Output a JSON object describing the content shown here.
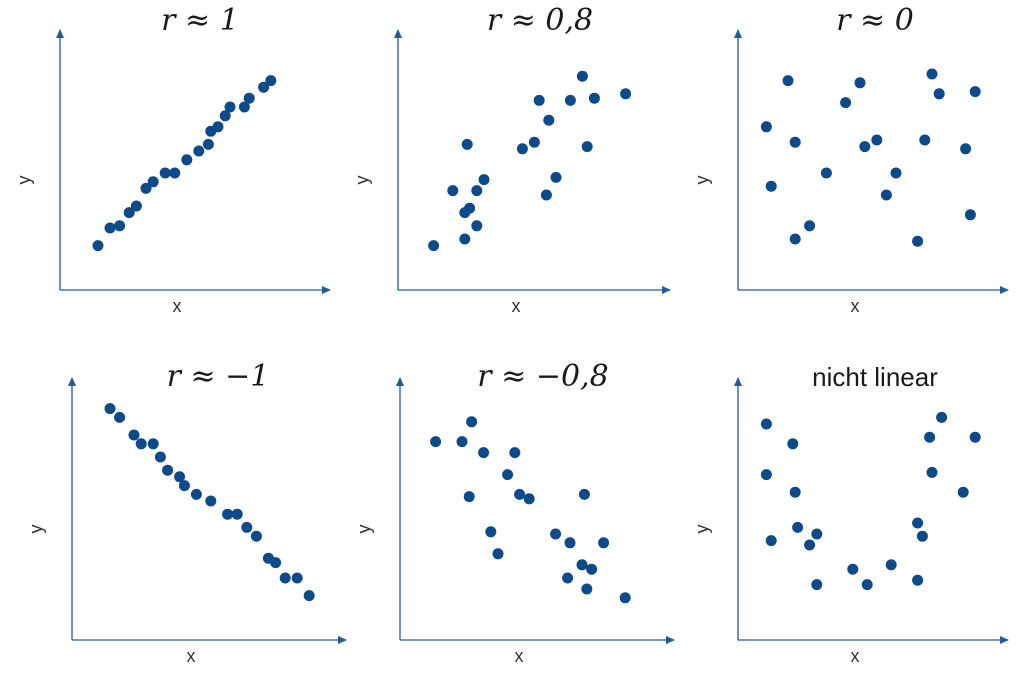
{
  "colors": {
    "axis": "#1f5c99",
    "point": "#0d4a8a"
  },
  "chart_data": [
    {
      "type": "scatter",
      "title": "r ≈ 1",
      "xlabel": "x",
      "ylabel": "y",
      "xlim": [
        0,
        10
      ],
      "ylim": [
        0,
        10
      ],
      "grid": false,
      "points": [
        [
          1.0,
          1.2
        ],
        [
          1.5,
          2.0
        ],
        [
          1.9,
          2.1
        ],
        [
          2.3,
          2.7
        ],
        [
          2.6,
          3.0
        ],
        [
          3.0,
          3.8
        ],
        [
          3.3,
          4.1
        ],
        [
          3.8,
          4.5
        ],
        [
          4.2,
          4.5
        ],
        [
          4.7,
          5.1
        ],
        [
          5.2,
          5.5
        ],
        [
          5.6,
          5.8
        ],
        [
          5.7,
          6.4
        ],
        [
          6.0,
          6.6
        ],
        [
          6.3,
          7.1
        ],
        [
          6.5,
          7.5
        ],
        [
          7.1,
          7.5
        ],
        [
          7.3,
          7.9
        ],
        [
          7.9,
          8.4
        ],
        [
          8.2,
          8.7
        ]
      ]
    },
    {
      "type": "scatter",
      "title": "r ≈ 0,8",
      "xlabel": "x",
      "ylabel": "y",
      "xlim": [
        0,
        10
      ],
      "ylim": [
        0,
        10
      ],
      "grid": false,
      "points": [
        [
          0.9,
          1.2
        ],
        [
          1.7,
          3.7
        ],
        [
          2.2,
          2.7
        ],
        [
          2.4,
          2.9
        ],
        [
          2.2,
          1.5
        ],
        [
          2.3,
          5.8
        ],
        [
          2.7,
          3.7
        ],
        [
          2.7,
          2.1
        ],
        [
          3.0,
          4.2
        ],
        [
          4.6,
          5.6
        ],
        [
          5.1,
          5.9
        ],
        [
          5.3,
          7.8
        ],
        [
          5.6,
          3.5
        ],
        [
          5.7,
          6.9
        ],
        [
          6.0,
          4.3
        ],
        [
          6.6,
          7.8
        ],
        [
          7.1,
          8.9
        ],
        [
          7.3,
          5.7
        ],
        [
          7.6,
          7.9
        ],
        [
          8.9,
          8.1
        ]
      ]
    },
    {
      "type": "scatter",
      "title": "r ≈ 0",
      "xlabel": "x",
      "ylabel": "y",
      "xlim": [
        0,
        10
      ],
      "ylim": [
        0,
        10
      ],
      "grid": false,
      "points": [
        [
          0.6,
          6.6
        ],
        [
          0.8,
          3.9
        ],
        [
          1.5,
          8.7
        ],
        [
          1.8,
          1.5
        ],
        [
          1.8,
          5.9
        ],
        [
          2.4,
          2.1
        ],
        [
          3.1,
          4.5
        ],
        [
          3.9,
          7.7
        ],
        [
          4.5,
          8.6
        ],
        [
          4.7,
          5.7
        ],
        [
          5.2,
          6.0
        ],
        [
          5.6,
          3.5
        ],
        [
          6.0,
          4.5
        ],
        [
          6.9,
          1.4
        ],
        [
          7.2,
          6.0
        ],
        [
          7.5,
          9.0
        ],
        [
          7.8,
          8.1
        ],
        [
          8.9,
          5.6
        ],
        [
          9.1,
          2.6
        ],
        [
          9.3,
          8.2
        ]
      ]
    },
    {
      "type": "scatter",
      "title": "r ≈ −1",
      "xlabel": "x",
      "ylabel": "y",
      "xlim": [
        0,
        10
      ],
      "ylim": [
        0,
        10
      ],
      "grid": false,
      "points": [
        [
          1.0,
          9.7
        ],
        [
          1.4,
          9.3
        ],
        [
          2.0,
          8.5
        ],
        [
          2.3,
          8.1
        ],
        [
          2.8,
          8.1
        ],
        [
          3.1,
          7.5
        ],
        [
          3.4,
          6.9
        ],
        [
          3.9,
          6.6
        ],
        [
          4.1,
          6.2
        ],
        [
          4.6,
          5.8
        ],
        [
          5.2,
          5.5
        ],
        [
          5.9,
          4.9
        ],
        [
          6.3,
          4.9
        ],
        [
          6.7,
          4.3
        ],
        [
          7.1,
          3.9
        ],
        [
          7.6,
          2.9
        ],
        [
          7.9,
          2.7
        ],
        [
          8.3,
          2.0
        ],
        [
          8.8,
          2.0
        ],
        [
          9.3,
          1.2
        ]
      ]
    },
    {
      "type": "scatter",
      "title": "r ≈ −0,8",
      "xlabel": "x",
      "ylabel": "y",
      "xlim": [
        0,
        10
      ],
      "ylim": [
        0,
        10
      ],
      "grid": false,
      "points": [
        [
          0.9,
          8.2
        ],
        [
          2.0,
          8.2
        ],
        [
          2.3,
          5.7
        ],
        [
          2.4,
          9.1
        ],
        [
          2.9,
          7.7
        ],
        [
          3.2,
          4.1
        ],
        [
          3.5,
          3.1
        ],
        [
          3.9,
          6.7
        ],
        [
          4.2,
          7.7
        ],
        [
          4.4,
          5.8
        ],
        [
          4.8,
          5.6
        ],
        [
          5.9,
          4.0
        ],
        [
          6.4,
          2.0
        ],
        [
          6.5,
          3.6
        ],
        [
          7.1,
          5.8
        ],
        [
          7.0,
          2.6
        ],
        [
          7.2,
          1.5
        ],
        [
          7.4,
          2.4
        ],
        [
          7.9,
          3.6
        ],
        [
          8.8,
          1.1
        ]
      ]
    },
    {
      "type": "scatter",
      "title": "nicht linear",
      "xlabel": "x",
      "ylabel": "y",
      "xlim": [
        0,
        10
      ],
      "ylim": [
        0,
        10
      ],
      "grid": false,
      "points": [
        [
          0.6,
          9.0
        ],
        [
          0.6,
          6.7
        ],
        [
          0.8,
          3.7
        ],
        [
          1.7,
          8.1
        ],
        [
          1.8,
          5.9
        ],
        [
          1.9,
          4.3
        ],
        [
          2.4,
          3.5
        ],
        [
          2.7,
          1.7
        ],
        [
          2.7,
          4.0
        ],
        [
          4.2,
          2.4
        ],
        [
          4.8,
          1.7
        ],
        [
          5.8,
          2.6
        ],
        [
          6.9,
          1.9
        ],
        [
          6.9,
          4.5
        ],
        [
          7.1,
          3.9
        ],
        [
          7.4,
          8.4
        ],
        [
          7.5,
          6.8
        ],
        [
          7.9,
          9.3
        ],
        [
          8.8,
          5.9
        ],
        [
          9.3,
          8.4
        ]
      ]
    }
  ]
}
